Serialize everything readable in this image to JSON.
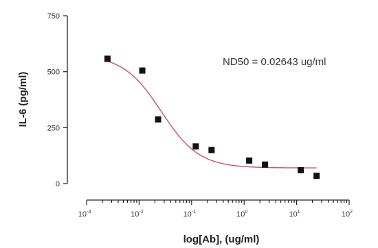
{
  "chart_data": {
    "type": "scatter",
    "title": "",
    "xlabel": "log[Ab], (ug/ml)",
    "ylabel": "IL-6 (pg/ml)",
    "xscale": "log",
    "xlim": [
      0.001,
      100
    ],
    "ylim": [
      0,
      750
    ],
    "grid": false,
    "legend": "none",
    "x_ticks": [
      {
        "value": 0.001,
        "base": "10",
        "exp": "-3"
      },
      {
        "value": 0.01,
        "base": "10",
        "exp": "-2"
      },
      {
        "value": 0.1,
        "base": "10",
        "exp": "-1"
      },
      {
        "value": 1,
        "base": "10",
        "exp": "0"
      },
      {
        "value": 10,
        "base": "10",
        "exp": "1"
      },
      {
        "value": 100,
        "base": "10",
        "exp": "2"
      }
    ],
    "y_ticks": [
      {
        "value": 0,
        "label": "0"
      },
      {
        "value": 250,
        "label": "250"
      },
      {
        "value": 500,
        "label": "500"
      },
      {
        "value": 750,
        "label": "750"
      }
    ],
    "series": [
      {
        "marker": "square",
        "color": "#111111",
        "points": [
          {
            "x": 0.0025,
            "y": 558
          },
          {
            "x": 0.0115,
            "y": 505
          },
          {
            "x": 0.023,
            "y": 287
          },
          {
            "x": 0.12,
            "y": 166
          },
          {
            "x": 0.24,
            "y": 150
          },
          {
            "x": 1.25,
            "y": 103
          },
          {
            "x": 2.5,
            "y": 85
          },
          {
            "x": 12,
            "y": 60
          },
          {
            "x": 24,
            "y": 35
          }
        ]
      }
    ],
    "fit": {
      "model": "4PL",
      "color": "#c8506a",
      "top": 575,
      "bottom": 70,
      "ec50": 0.02643,
      "hill": 1.2,
      "x_range": [
        0.0025,
        24
      ]
    },
    "annotation": "ND50 = 0.02643 ug/ml"
  }
}
